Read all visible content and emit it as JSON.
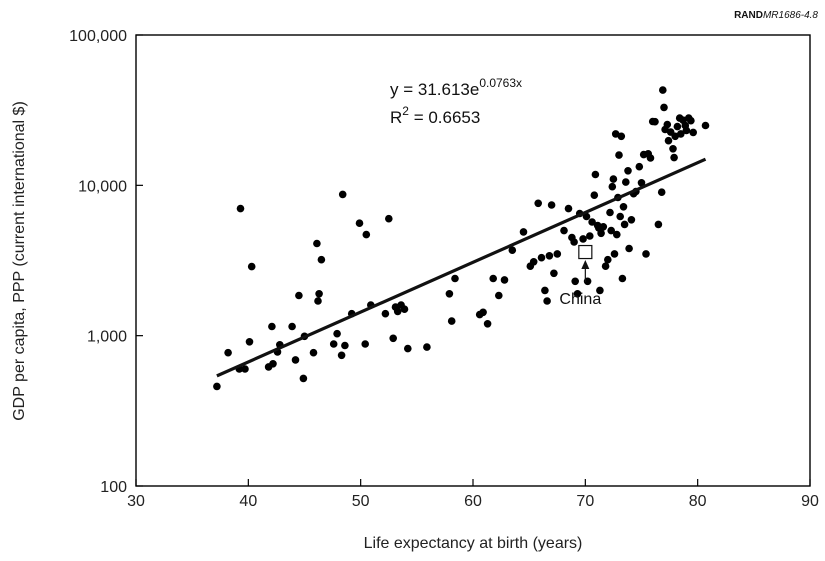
{
  "source_label": {
    "bold": "RAND",
    "italic": "MR1686-4.8"
  },
  "chart_data": {
    "type": "scatter",
    "xlabel": "Life expectancy at birth (years)",
    "ylabel": "GDP per capita, PPP (current international $)",
    "xlim": [
      30,
      90
    ],
    "ylim": [
      100,
      100000
    ],
    "y_scale": "log",
    "x_ticks": [
      30,
      40,
      50,
      60,
      70,
      80,
      90
    ],
    "x_tick_labels": [
      "30",
      "40",
      "50",
      "60",
      "70",
      "80",
      "90"
    ],
    "y_ticks": [
      100,
      1000,
      10000,
      100000
    ],
    "y_tick_labels": [
      "100",
      "1,000",
      "10,000",
      "100,000"
    ],
    "grid": false,
    "trendline": {
      "equation_main": "y = 31.613e",
      "equation_exponent": "0.0763x",
      "r2_prefix": "R",
      "r2_sup": "2",
      "r2_value": " = 0.6653",
      "a": 31.613,
      "b": 0.0763,
      "x_range": [
        37.2,
        80.7
      ]
    },
    "annotation": {
      "label": "China",
      "x": 70,
      "y": 3600
    },
    "points": [
      [
        37.2,
        460
      ],
      [
        38.2,
        770
      ],
      [
        39.2,
        600
      ],
      [
        39.3,
        7000
      ],
      [
        39.7,
        600
      ],
      [
        40.1,
        910
      ],
      [
        40.3,
        2880
      ],
      [
        41.8,
        620
      ],
      [
        42.1,
        1150
      ],
      [
        42.2,
        650
      ],
      [
        42.6,
        780
      ],
      [
        42.8,
        870
      ],
      [
        43.9,
        1150
      ],
      [
        44.2,
        690
      ],
      [
        44.5,
        1850
      ],
      [
        44.9,
        520
      ],
      [
        45.0,
        990
      ],
      [
        45.8,
        770
      ],
      [
        46.1,
        4100
      ],
      [
        46.2,
        1700
      ],
      [
        46.3,
        1900
      ],
      [
        46.5,
        3200
      ],
      [
        47.6,
        880
      ],
      [
        47.9,
        1030
      ],
      [
        48.3,
        740
      ],
      [
        48.4,
        8700
      ],
      [
        48.6,
        860
      ],
      [
        49.2,
        1400
      ],
      [
        49.9,
        5600
      ],
      [
        50.4,
        880
      ],
      [
        50.5,
        4700
      ],
      [
        50.9,
        1600
      ],
      [
        52.2,
        1400
      ],
      [
        52.5,
        6000
      ],
      [
        52.9,
        960
      ],
      [
        53.1,
        1550
      ],
      [
        53.3,
        1450
      ],
      [
        53.6,
        1600
      ],
      [
        53.9,
        1500
      ],
      [
        54.2,
        820
      ],
      [
        55.9,
        840
      ],
      [
        57.9,
        1900
      ],
      [
        58.1,
        1250
      ],
      [
        58.4,
        2400
      ],
      [
        60.6,
        1380
      ],
      [
        60.9,
        1430
      ],
      [
        61.3,
        1200
      ],
      [
        61.8,
        2400
      ],
      [
        62.3,
        1850
      ],
      [
        62.8,
        2350
      ],
      [
        63.5,
        3700
      ],
      [
        64.5,
        4900
      ],
      [
        65.1,
        2900
      ],
      [
        65.4,
        3100
      ],
      [
        65.8,
        7600
      ],
      [
        66.1,
        3300
      ],
      [
        66.4,
        2000
      ],
      [
        66.6,
        1700
      ],
      [
        66.8,
        3400
      ],
      [
        67.0,
        7400
      ],
      [
        67.2,
        2600
      ],
      [
        67.5,
        3500
      ],
      [
        68.1,
        5000
      ],
      [
        68.5,
        7000
      ],
      [
        68.8,
        4500
      ],
      [
        69.0,
        4200
      ],
      [
        69.1,
        2300
      ],
      [
        69.3,
        1900
      ],
      [
        69.5,
        6500
      ],
      [
        69.8,
        4400
      ],
      [
        70.1,
        6200
      ],
      [
        70.2,
        2300
      ],
      [
        70.4,
        4600
      ],
      [
        70.6,
        5700
      ],
      [
        70.8,
        8600
      ],
      [
        70.9,
        11800
      ],
      [
        71.1,
        5400
      ],
      [
        71.2,
        5200
      ],
      [
        71.3,
        2000
      ],
      [
        71.4,
        4800
      ],
      [
        71.6,
        5300
      ],
      [
        71.8,
        2900
      ],
      [
        72.0,
        3200
      ],
      [
        72.2,
        6600
      ],
      [
        72.3,
        5000
      ],
      [
        72.4,
        9800
      ],
      [
        72.5,
        11000
      ],
      [
        72.6,
        3500
      ],
      [
        72.7,
        22000
      ],
      [
        72.8,
        4700
      ],
      [
        72.9,
        8300
      ],
      [
        73.0,
        15900
      ],
      [
        73.1,
        6200
      ],
      [
        73.2,
        21200
      ],
      [
        73.3,
        2400
      ],
      [
        73.4,
        7200
      ],
      [
        73.5,
        5500
      ],
      [
        73.6,
        10500
      ],
      [
        73.8,
        12500
      ],
      [
        73.9,
        3800
      ],
      [
        74.1,
        5900
      ],
      [
        74.3,
        8800
      ],
      [
        74.5,
        9100
      ],
      [
        74.8,
        13300
      ],
      [
        75.0,
        10400
      ],
      [
        75.2,
        16000
      ],
      [
        75.4,
        3500
      ],
      [
        75.6,
        16200
      ],
      [
        75.8,
        15200
      ],
      [
        76.0,
        26600
      ],
      [
        76.2,
        26500
      ],
      [
        76.5,
        5500
      ],
      [
        76.8,
        9000
      ],
      [
        76.9,
        43000
      ],
      [
        77.0,
        33000
      ],
      [
        77.1,
        23500
      ],
      [
        77.3,
        25400
      ],
      [
        77.4,
        19800
      ],
      [
        77.6,
        22600
      ],
      [
        77.8,
        17500
      ],
      [
        77.9,
        15300
      ],
      [
        78.0,
        21200
      ],
      [
        78.2,
        24600
      ],
      [
        78.4,
        28000
      ],
      [
        78.5,
        22000
      ],
      [
        78.7,
        27100
      ],
      [
        78.9,
        25000
      ],
      [
        79.0,
        23200
      ],
      [
        79.2,
        28000
      ],
      [
        79.4,
        26900
      ],
      [
        79.6,
        22500
      ],
      [
        80.7,
        25000
      ]
    ]
  }
}
